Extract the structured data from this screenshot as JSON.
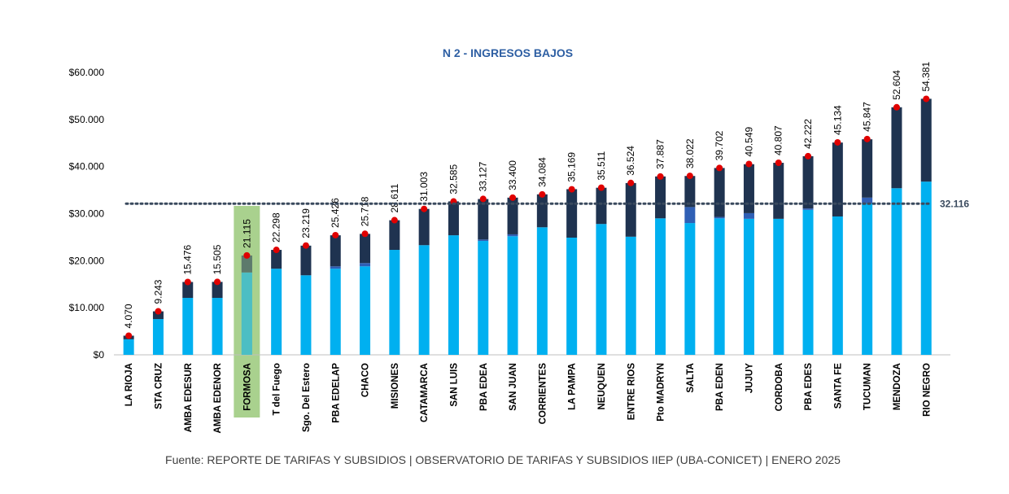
{
  "chart_data": {
    "type": "bar",
    "stacked": true,
    "title": "N 2 - INGRESOS BAJOS",
    "footer": "Fuente: REPORTE DE TARIFAS Y SUBSIDIOS  | OBSERVATORIO DE TARIFAS Y SUBSIDIOS IIEP (UBA-CONICET) | ENERO 2025",
    "categories": [
      "LA RIOJA",
      "STA CRUZ",
      "AMBA EDESUR",
      "AMBA EDENOR",
      "FORMOSA",
      "T del Fuego",
      "Sgo. Del Estero",
      "PBA EDELAP",
      "CHACO",
      "MISIONES",
      "CATAMARCA",
      "SAN LUIS",
      "PBA EDEA",
      "SAN JUAN",
      "CORRIENTES",
      "LA PAMPA",
      "NEUQUEN",
      "ENTRE RIOS",
      "Pto MADRYN",
      "SALTA",
      "PBA EDEN",
      "JUJUY",
      "CORDOBA",
      "PBA EDES",
      "SANTA FE",
      "TUCUMAN",
      "MENDOZA",
      "RIO NEGRO"
    ],
    "series": [
      {
        "color": "#00b0f0",
        "values": [
          3300,
          7600,
          12100,
          12100,
          17500,
          18300,
          16900,
          18300,
          18800,
          22300,
          23300,
          25400,
          24200,
          25200,
          27100,
          24900,
          27800,
          25100,
          29000,
          28000,
          29000,
          28900,
          28900,
          30800,
          29400,
          32200,
          35400,
          36800
        ]
      },
      {
        "color": "#2f5fb5",
        "values": [
          0,
          0,
          0,
          0,
          0,
          0,
          0,
          500,
          700,
          0,
          0,
          0,
          300,
          400,
          0,
          0,
          0,
          0,
          0,
          3400,
          300,
          1200,
          0,
          300,
          0,
          1200,
          0,
          0
        ]
      },
      {
        "color": "#1f3350",
        "values": [
          770,
          1640,
          3380,
          3400,
          3600,
          4000,
          6300,
          6600,
          6200,
          6300,
          7700,
          7200,
          8600,
          7800,
          7000,
          10300,
          7700,
          11400,
          8900,
          6600,
          10400,
          10400,
          11900,
          11100,
          15700,
          12400,
          17200,
          17600
        ]
      }
    ],
    "totals": [
      4070,
      9243,
      15476,
      15505,
      21115,
      22298,
      23219,
      25426,
      25718,
      28611,
      31003,
      32585,
      33127,
      33400,
      34084,
      35169,
      35511,
      36524,
      37887,
      38022,
      39702,
      40549,
      40807,
      42222,
      45134,
      45847,
      52604,
      54381
    ],
    "value_labels": [
      "4.070",
      "9.243",
      "15.476",
      "15.505",
      "21.115",
      "22.298",
      "23.219",
      "25.426",
      "25.718",
      "28.611",
      "31.003",
      "32.585",
      "33.127",
      "33.400",
      "34.084",
      "35.169",
      "35.511",
      "36.524",
      "37.887",
      "38.022",
      "39.702",
      "40.549",
      "40.807",
      "42.222",
      "45.134",
      "45.847",
      "52.604",
      "54.381"
    ],
    "total_marker_color": "#e00000",
    "highlight_index": 4,
    "highlight_color": "#a9d18e",
    "reference_line": {
      "value": 32116,
      "label": "32.116"
    },
    "ylim": [
      0,
      60000
    ],
    "yticks": [
      {
        "value": 0,
        "label": "$0"
      },
      {
        "value": 10000,
        "label": "$10.000"
      },
      {
        "value": 20000,
        "label": "$20.000"
      },
      {
        "value": 30000,
        "label": "$30.000"
      },
      {
        "value": 40000,
        "label": "$40.000"
      },
      {
        "value": 50000,
        "label": "$50.000"
      },
      {
        "value": 60000,
        "label": "$60.000"
      }
    ]
  }
}
